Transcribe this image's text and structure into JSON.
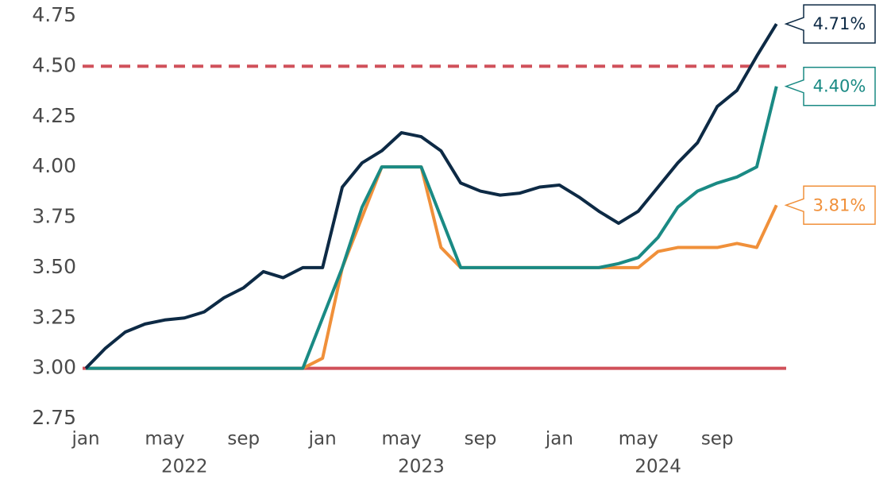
{
  "chart_data": {
    "type": "line",
    "x": [
      "2022-01",
      "2022-02",
      "2022-03",
      "2022-04",
      "2022-05",
      "2022-06",
      "2022-07",
      "2022-08",
      "2022-09",
      "2022-10",
      "2022-11",
      "2022-12",
      "2023-01",
      "2023-02",
      "2023-03",
      "2023-04",
      "2023-05",
      "2023-06",
      "2023-07",
      "2023-08",
      "2023-09",
      "2023-10",
      "2023-11",
      "2023-12",
      "2024-01",
      "2024-02",
      "2024-03",
      "2024-04",
      "2024-05",
      "2024-06",
      "2024-07",
      "2024-08",
      "2024-09",
      "2024-10",
      "2024-11",
      "2024-12"
    ],
    "series": [
      {
        "name": "navy",
        "color": "#0d2a45",
        "last_label": "4.71%",
        "values": [
          3.0,
          3.1,
          3.18,
          3.22,
          3.24,
          3.25,
          3.28,
          3.35,
          3.4,
          3.48,
          3.45,
          3.5,
          3.5,
          3.9,
          4.02,
          4.08,
          4.17,
          4.15,
          4.08,
          3.92,
          3.88,
          3.86,
          3.87,
          3.9,
          3.91,
          3.85,
          3.78,
          3.72,
          3.78,
          3.9,
          4.02,
          4.12,
          4.3,
          4.38,
          4.55,
          4.71
        ]
      },
      {
        "name": "teal",
        "color": "#1a8a84",
        "last_label": "4.40%",
        "values": [
          3.0,
          3.0,
          3.0,
          3.0,
          3.0,
          3.0,
          3.0,
          3.0,
          3.0,
          3.0,
          3.0,
          3.0,
          3.25,
          3.5,
          3.8,
          4.0,
          4.0,
          4.0,
          3.75,
          3.5,
          3.5,
          3.5,
          3.5,
          3.5,
          3.5,
          3.5,
          3.5,
          3.52,
          3.55,
          3.65,
          3.8,
          3.88,
          3.92,
          3.95,
          4.0,
          4.4
        ]
      },
      {
        "name": "orange",
        "color": "#f0903a",
        "last_label": "3.81%",
        "values": [
          3.0,
          3.0,
          3.0,
          3.0,
          3.0,
          3.0,
          3.0,
          3.0,
          3.0,
          3.0,
          3.0,
          3.0,
          3.05,
          3.5,
          3.75,
          4.0,
          4.0,
          4.0,
          3.6,
          3.5,
          3.5,
          3.5,
          3.5,
          3.5,
          3.5,
          3.5,
          3.5,
          3.5,
          3.5,
          3.58,
          3.6,
          3.6,
          3.6,
          3.62,
          3.6,
          3.81
        ]
      }
    ],
    "reference_lines": [
      {
        "value": 4.5,
        "color": "#d0505a",
        "style": "dashed"
      },
      {
        "value": 3.0,
        "color": "#d0505a",
        "style": "solid"
      }
    ],
    "ylim": [
      2.75,
      4.75
    ],
    "yticks": [
      2.75,
      {
        "value": 3.0,
        "label": "3.00"
      },
      3.25,
      {
        "value": 3.5,
        "label": "3.50"
      },
      3.75,
      {
        "value": 4.0,
        "label": "4.00"
      },
      4.25,
      {
        "value": 4.5,
        "label": "4.50"
      },
      4.75
    ],
    "xticks": [
      {
        "value": "2022-01",
        "label": "jan"
      },
      {
        "value": "2022-05",
        "label": "may"
      },
      {
        "value": "2022-09",
        "label": "sep"
      },
      {
        "value": "2023-01",
        "label": "jan"
      },
      {
        "value": "2023-05",
        "label": "may"
      },
      {
        "value": "2023-09",
        "label": "sep"
      },
      {
        "value": "2024-01",
        "label": "jan"
      },
      {
        "value": "2024-05",
        "label": "may"
      },
      {
        "value": "2024-09",
        "label": "sep"
      }
    ],
    "years": [
      {
        "value": "2022-06",
        "label": "2022"
      },
      {
        "value": "2023-06",
        "label": "2023"
      },
      {
        "value": "2024-06",
        "label": "2024"
      }
    ],
    "grid": false
  }
}
